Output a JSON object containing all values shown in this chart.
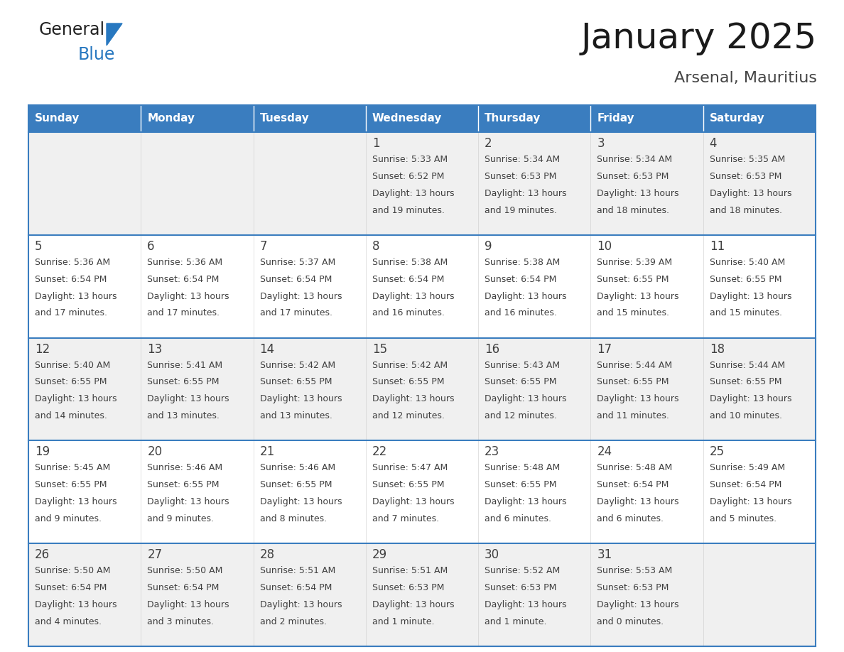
{
  "title": "January 2025",
  "subtitle": "Arsenal, Mauritius",
  "days_of_week": [
    "Sunday",
    "Monday",
    "Tuesday",
    "Wednesday",
    "Thursday",
    "Friday",
    "Saturday"
  ],
  "header_bg": "#3a7dbf",
  "header_text": "#ffffff",
  "row_bg_odd": "#f0f0f0",
  "row_bg_even": "#ffffff",
  "border_color": "#3a7dbf",
  "text_color": "#404040",
  "calendar": [
    [
      {
        "day": "",
        "sunrise": "",
        "sunset": "",
        "daylight": ""
      },
      {
        "day": "",
        "sunrise": "",
        "sunset": "",
        "daylight": ""
      },
      {
        "day": "",
        "sunrise": "",
        "sunset": "",
        "daylight": ""
      },
      {
        "day": "1",
        "sunrise": "5:33 AM",
        "sunset": "6:52 PM",
        "daylight": "13 hours and 19 minutes."
      },
      {
        "day": "2",
        "sunrise": "5:34 AM",
        "sunset": "6:53 PM",
        "daylight": "13 hours and 19 minutes."
      },
      {
        "day": "3",
        "sunrise": "5:34 AM",
        "sunset": "6:53 PM",
        "daylight": "13 hours and 18 minutes."
      },
      {
        "day": "4",
        "sunrise": "5:35 AM",
        "sunset": "6:53 PM",
        "daylight": "13 hours and 18 minutes."
      }
    ],
    [
      {
        "day": "5",
        "sunrise": "5:36 AM",
        "sunset": "6:54 PM",
        "daylight": "13 hours and 17 minutes."
      },
      {
        "day": "6",
        "sunrise": "5:36 AM",
        "sunset": "6:54 PM",
        "daylight": "13 hours and 17 minutes."
      },
      {
        "day": "7",
        "sunrise": "5:37 AM",
        "sunset": "6:54 PM",
        "daylight": "13 hours and 17 minutes."
      },
      {
        "day": "8",
        "sunrise": "5:38 AM",
        "sunset": "6:54 PM",
        "daylight": "13 hours and 16 minutes."
      },
      {
        "day": "9",
        "sunrise": "5:38 AM",
        "sunset": "6:54 PM",
        "daylight": "13 hours and 16 minutes."
      },
      {
        "day": "10",
        "sunrise": "5:39 AM",
        "sunset": "6:55 PM",
        "daylight": "13 hours and 15 minutes."
      },
      {
        "day": "11",
        "sunrise": "5:40 AM",
        "sunset": "6:55 PM",
        "daylight": "13 hours and 15 minutes."
      }
    ],
    [
      {
        "day": "12",
        "sunrise": "5:40 AM",
        "sunset": "6:55 PM",
        "daylight": "13 hours and 14 minutes."
      },
      {
        "day": "13",
        "sunrise": "5:41 AM",
        "sunset": "6:55 PM",
        "daylight": "13 hours and 13 minutes."
      },
      {
        "day": "14",
        "sunrise": "5:42 AM",
        "sunset": "6:55 PM",
        "daylight": "13 hours and 13 minutes."
      },
      {
        "day": "15",
        "sunrise": "5:42 AM",
        "sunset": "6:55 PM",
        "daylight": "13 hours and 12 minutes."
      },
      {
        "day": "16",
        "sunrise": "5:43 AM",
        "sunset": "6:55 PM",
        "daylight": "13 hours and 12 minutes."
      },
      {
        "day": "17",
        "sunrise": "5:44 AM",
        "sunset": "6:55 PM",
        "daylight": "13 hours and 11 minutes."
      },
      {
        "day": "18",
        "sunrise": "5:44 AM",
        "sunset": "6:55 PM",
        "daylight": "13 hours and 10 minutes."
      }
    ],
    [
      {
        "day": "19",
        "sunrise": "5:45 AM",
        "sunset": "6:55 PM",
        "daylight": "13 hours and 9 minutes."
      },
      {
        "day": "20",
        "sunrise": "5:46 AM",
        "sunset": "6:55 PM",
        "daylight": "13 hours and 9 minutes."
      },
      {
        "day": "21",
        "sunrise": "5:46 AM",
        "sunset": "6:55 PM",
        "daylight": "13 hours and 8 minutes."
      },
      {
        "day": "22",
        "sunrise": "5:47 AM",
        "sunset": "6:55 PM",
        "daylight": "13 hours and 7 minutes."
      },
      {
        "day": "23",
        "sunrise": "5:48 AM",
        "sunset": "6:55 PM",
        "daylight": "13 hours and 6 minutes."
      },
      {
        "day": "24",
        "sunrise": "5:48 AM",
        "sunset": "6:54 PM",
        "daylight": "13 hours and 6 minutes."
      },
      {
        "day": "25",
        "sunrise": "5:49 AM",
        "sunset": "6:54 PM",
        "daylight": "13 hours and 5 minutes."
      }
    ],
    [
      {
        "day": "26",
        "sunrise": "5:50 AM",
        "sunset": "6:54 PM",
        "daylight": "13 hours and 4 minutes."
      },
      {
        "day": "27",
        "sunrise": "5:50 AM",
        "sunset": "6:54 PM",
        "daylight": "13 hours and 3 minutes."
      },
      {
        "day": "28",
        "sunrise": "5:51 AM",
        "sunset": "6:54 PM",
        "daylight": "13 hours and 2 minutes."
      },
      {
        "day": "29",
        "sunrise": "5:51 AM",
        "sunset": "6:53 PM",
        "daylight": "13 hours and 1 minute."
      },
      {
        "day": "30",
        "sunrise": "5:52 AM",
        "sunset": "6:53 PM",
        "daylight": "13 hours and 1 minute."
      },
      {
        "day": "31",
        "sunrise": "5:53 AM",
        "sunset": "6:53 PM",
        "daylight": "13 hours and 0 minutes."
      },
      {
        "day": "",
        "sunrise": "",
        "sunset": "",
        "daylight": ""
      }
    ]
  ],
  "logo_general_color": "#222222",
  "logo_blue_color": "#2878c0",
  "logo_triangle_color": "#2878c0"
}
